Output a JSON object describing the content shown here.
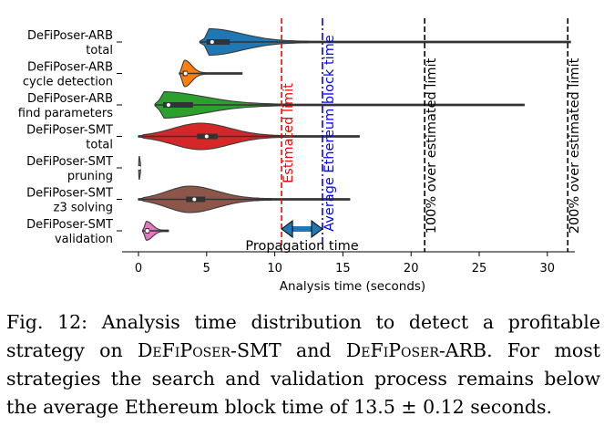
{
  "chart_data": {
    "type": "violin",
    "xlabel": "Analysis time (seconds)",
    "xlim": [
      -1,
      32
    ],
    "xticks": [
      0,
      5,
      10,
      15,
      20,
      25,
      30
    ],
    "grid": false,
    "categories": [
      [
        "DeFiPoser-ARB",
        "total"
      ],
      [
        "DeFiPoser-ARB",
        "cycle detection"
      ],
      [
        "DeFiPoser-ARB",
        "find parameters"
      ],
      [
        "DeFiPoser-SMT",
        "total"
      ],
      [
        "DeFiPoser-SMT",
        "pruning"
      ],
      [
        "DeFiPoser-SMT",
        "z3 solving"
      ],
      [
        "DeFiPoser-SMT",
        "validation"
      ]
    ],
    "violins": [
      {
        "color": "#1f77b4",
        "min": 4.5,
        "q1": 5.0,
        "median": 5.4,
        "q3": 6.7,
        "max": 31.7,
        "mode": 5.2,
        "halfwidth": 0.42
      },
      {
        "color": "#ff7f0e",
        "min": 3.0,
        "q1": 3.25,
        "median": 3.45,
        "q3": 3.6,
        "max": 7.6,
        "mode": 3.4,
        "halfwidth": 0.42
      },
      {
        "color": "#2ca02c",
        "min": 1.2,
        "q1": 1.8,
        "median": 2.2,
        "q3": 4.0,
        "max": 28.3,
        "mode": 1.7,
        "halfwidth": 0.42
      },
      {
        "color": "#d62728",
        "min": 0.0,
        "q1": 4.3,
        "median": 5.0,
        "q3": 5.8,
        "max": 16.2,
        "mode": 4.6,
        "halfwidth": 0.42
      },
      {
        "color": "#9467bd",
        "min": 0.0,
        "q1": 0.03,
        "median": 0.05,
        "q3": 0.08,
        "max": 0.15,
        "mode": 0.05,
        "halfwidth": 0.36
      },
      {
        "color": "#8c564b",
        "min": 0.0,
        "q1": 3.5,
        "median": 4.1,
        "q3": 4.9,
        "max": 15.5,
        "mode": 3.8,
        "halfwidth": 0.42
      },
      {
        "color": "#e377c2",
        "min": 0.3,
        "q1": 0.5,
        "median": 0.65,
        "q3": 0.8,
        "max": 2.2,
        "mode": 0.6,
        "halfwidth": 0.3
      }
    ],
    "reference_lines": [
      {
        "x": 10.5,
        "label": "Estimated limit",
        "color": "#ff0000",
        "style": "dashed"
      },
      {
        "x": 13.5,
        "label": "Average Ethereum block time",
        "color": "#0000ff",
        "style": "dashdot"
      },
      {
        "x": 21.0,
        "label": "100% over estimated limit",
        "color": "#000000",
        "style": "dashed"
      },
      {
        "x": 31.5,
        "label": "200% over estimated limit",
        "color": "#000000",
        "style": "dashed"
      }
    ],
    "arrow": {
      "from": 10.5,
      "to": 13.5,
      "label": "Propagation time",
      "color": "#1f77b4"
    }
  },
  "caption": {
    "prefix": "Fig. 12: Analysis time distribution to detect a profitable strategy on ",
    "name_smt": "DeFiPoser-SMT",
    "and": " and ",
    "name_arb": "DeFiPoser-ARB",
    "suffix": ". For most strategies the search and validation process remains below the average Ethereum block time of 13.5 ± 0.12 seconds."
  }
}
